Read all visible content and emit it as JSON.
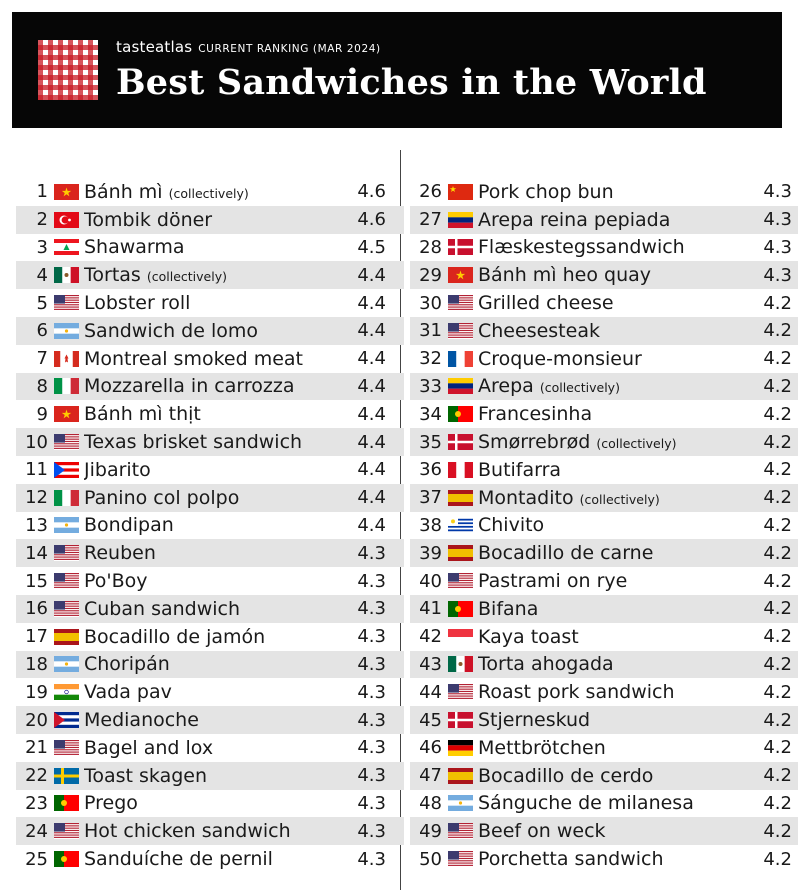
{
  "header": {
    "brand_main": "tasteatlas",
    "brand_sub": "CURRENT RANKING (MAR 2024)",
    "title": "Best Sandwiches in the World"
  },
  "flags": {
    "VN": [
      "#da251d",
      "#ffcd00"
    ],
    "TR": [
      "#e30a17",
      "#ffffff"
    ],
    "LB": [
      "#ee161f",
      "#ffffff",
      "#00a651"
    ],
    "MX": [
      "#006847",
      "#ffffff",
      "#ce1126"
    ],
    "US": [
      "#b22234",
      "#ffffff",
      "#3c3b6e"
    ],
    "AR": [
      "#74acdf",
      "#ffffff"
    ],
    "CA": [
      "#d52b1e",
      "#ffffff"
    ],
    "IT": [
      "#009246",
      "#ffffff",
      "#ce2b37"
    ],
    "PR": [
      "#ed0000",
      "#ffffff",
      "#0050f0"
    ],
    "ES": [
      "#aa151b",
      "#f1bf00"
    ],
    "IN": [
      "#ff9933",
      "#ffffff",
      "#138808"
    ],
    "CU": [
      "#002a8f",
      "#ffffff",
      "#cf142b"
    ],
    "SE": [
      "#006aa7",
      "#fecc00"
    ],
    "PT": [
      "#006600",
      "#ff0000"
    ],
    "CN": [
      "#de2910",
      "#ffde00"
    ],
    "VE": [
      "#ffcc00",
      "#00247d",
      "#cf142b"
    ],
    "DK": [
      "#c8102e",
      "#ffffff"
    ],
    "FR": [
      "#0055a4",
      "#ffffff",
      "#ef4135"
    ],
    "PE": [
      "#d91023",
      "#ffffff"
    ],
    "UY": [
      "#0038a8",
      "#ffffff"
    ],
    "SG": [
      "#ef3340",
      "#ffffff"
    ],
    "DE": [
      "#000000",
      "#dd0000",
      "#ffce00"
    ]
  },
  "rows": [
    {
      "rank": "1",
      "name": "Bánh mì",
      "note": "(collectively)",
      "flag": "VN",
      "rating": "4.6"
    },
    {
      "rank": "2",
      "name": "Tombik döner",
      "note": "",
      "flag": "TR",
      "rating": "4.6"
    },
    {
      "rank": "3",
      "name": "Shawarma",
      "note": "",
      "flag": "LB",
      "rating": "4.5"
    },
    {
      "rank": "4",
      "name": "Tortas",
      "note": "(collectively)",
      "flag": "MX",
      "rating": "4.4"
    },
    {
      "rank": "5",
      "name": "Lobster roll",
      "note": "",
      "flag": "US",
      "rating": "4.4"
    },
    {
      "rank": "6",
      "name": "Sandwich de lomo",
      "note": "",
      "flag": "AR",
      "rating": "4.4"
    },
    {
      "rank": "7",
      "name": "Montreal smoked meat",
      "note": "",
      "flag": "CA",
      "rating": "4.4"
    },
    {
      "rank": "8",
      "name": "Mozzarella in carrozza",
      "note": "",
      "flag": "IT",
      "rating": "4.4"
    },
    {
      "rank": "9",
      "name": "Bánh mì thịt",
      "note": "",
      "flag": "VN",
      "rating": "4.4"
    },
    {
      "rank": "10",
      "name": "Texas brisket sandwich",
      "note": "",
      "flag": "US",
      "rating": "4.4"
    },
    {
      "rank": "11",
      "name": "Jibarito",
      "note": "",
      "flag": "PR",
      "rating": "4.4"
    },
    {
      "rank": "12",
      "name": "Panino col polpo",
      "note": "",
      "flag": "IT",
      "rating": "4.4"
    },
    {
      "rank": "13",
      "name": "Bondipan",
      "note": "",
      "flag": "AR",
      "rating": "4.4"
    },
    {
      "rank": "14",
      "name": "Reuben",
      "note": "",
      "flag": "US",
      "rating": "4.3"
    },
    {
      "rank": "15",
      "name": "Po'Boy",
      "note": "",
      "flag": "US",
      "rating": "4.3"
    },
    {
      "rank": "16",
      "name": "Cuban sandwich",
      "note": "",
      "flag": "US",
      "rating": "4.3"
    },
    {
      "rank": "17",
      "name": "Bocadillo de jamón",
      "note": "",
      "flag": "ES",
      "rating": "4.3"
    },
    {
      "rank": "18",
      "name": "Choripán",
      "note": "",
      "flag": "AR",
      "rating": "4.3"
    },
    {
      "rank": "19",
      "name": "Vada pav",
      "note": "",
      "flag": "IN",
      "rating": "4.3"
    },
    {
      "rank": "20",
      "name": "Medianoche",
      "note": "",
      "flag": "CU",
      "rating": "4.3"
    },
    {
      "rank": "21",
      "name": "Bagel and lox",
      "note": "",
      "flag": "US",
      "rating": "4.3"
    },
    {
      "rank": "22",
      "name": "Toast skagen",
      "note": "",
      "flag": "SE",
      "rating": "4.3"
    },
    {
      "rank": "23",
      "name": "Prego",
      "note": "",
      "flag": "PT",
      "rating": "4.3"
    },
    {
      "rank": "24",
      "name": "Hot chicken sandwich",
      "note": "",
      "flag": "US",
      "rating": "4.3"
    },
    {
      "rank": "25",
      "name": "Sanduíche de pernil",
      "note": "",
      "flag": "PT",
      "rating": "4.3"
    },
    {
      "rank": "26",
      "name": "Pork chop bun",
      "note": "",
      "flag": "CN",
      "rating": "4.3"
    },
    {
      "rank": "27",
      "name": "Arepa reina pepiada",
      "note": "",
      "flag": "VE",
      "rating": "4.3"
    },
    {
      "rank": "28",
      "name": "Flæskestegssandwich",
      "note": "",
      "flag": "DK",
      "rating": "4.3"
    },
    {
      "rank": "29",
      "name": "Bánh mì heo quay",
      "note": "",
      "flag": "VN",
      "rating": "4.3"
    },
    {
      "rank": "30",
      "name": "Grilled cheese",
      "note": "",
      "flag": "US",
      "rating": "4.2"
    },
    {
      "rank": "31",
      "name": "Cheesesteak",
      "note": "",
      "flag": "US",
      "rating": "4.2"
    },
    {
      "rank": "32",
      "name": "Croque-monsieur",
      "note": "",
      "flag": "FR",
      "rating": "4.2"
    },
    {
      "rank": "33",
      "name": "Arepa",
      "note": "(collectively)",
      "flag": "VE",
      "rating": "4.2"
    },
    {
      "rank": "34",
      "name": "Francesinha",
      "note": "",
      "flag": "PT",
      "rating": "4.2"
    },
    {
      "rank": "35",
      "name": "Smørrebrød",
      "note": "(collectively)",
      "flag": "DK",
      "rating": "4.2"
    },
    {
      "rank": "36",
      "name": "Butifarra",
      "note": "",
      "flag": "PE",
      "rating": "4.2"
    },
    {
      "rank": "37",
      "name": "Montadito",
      "note": "(collectively)",
      "flag": "ES",
      "rating": "4.2"
    },
    {
      "rank": "38",
      "name": "Chivito",
      "note": "",
      "flag": "UY",
      "rating": "4.2"
    },
    {
      "rank": "39",
      "name": "Bocadillo de carne",
      "note": "",
      "flag": "ES",
      "rating": "4.2"
    },
    {
      "rank": "40",
      "name": "Pastrami on rye",
      "note": "",
      "flag": "US",
      "rating": "4.2"
    },
    {
      "rank": "41",
      "name": "Bifana",
      "note": "",
      "flag": "PT",
      "rating": "4.2"
    },
    {
      "rank": "42",
      "name": "Kaya toast",
      "note": "",
      "flag": "SG",
      "rating": "4.2"
    },
    {
      "rank": "43",
      "name": "Torta ahogada",
      "note": "",
      "flag": "MX",
      "rating": "4.2"
    },
    {
      "rank": "44",
      "name": "Roast pork sandwich",
      "note": "",
      "flag": "US",
      "rating": "4.2"
    },
    {
      "rank": "45",
      "name": "Stjerneskud",
      "note": "",
      "flag": "DK",
      "rating": "4.2"
    },
    {
      "rank": "46",
      "name": "Mettbrötchen",
      "note": "",
      "flag": "DE",
      "rating": "4.2"
    },
    {
      "rank": "47",
      "name": "Bocadillo de cerdo",
      "note": "",
      "flag": "ES",
      "rating": "4.2"
    },
    {
      "rank": "48",
      "name": "Sánguche de milanesa",
      "note": "",
      "flag": "AR",
      "rating": "4.2"
    },
    {
      "rank": "49",
      "name": "Beef on weck",
      "note": "",
      "flag": "US",
      "rating": "4.2"
    },
    {
      "rank": "50",
      "name": "Porchetta sandwich",
      "note": "",
      "flag": "US",
      "rating": "4.2"
    }
  ]
}
